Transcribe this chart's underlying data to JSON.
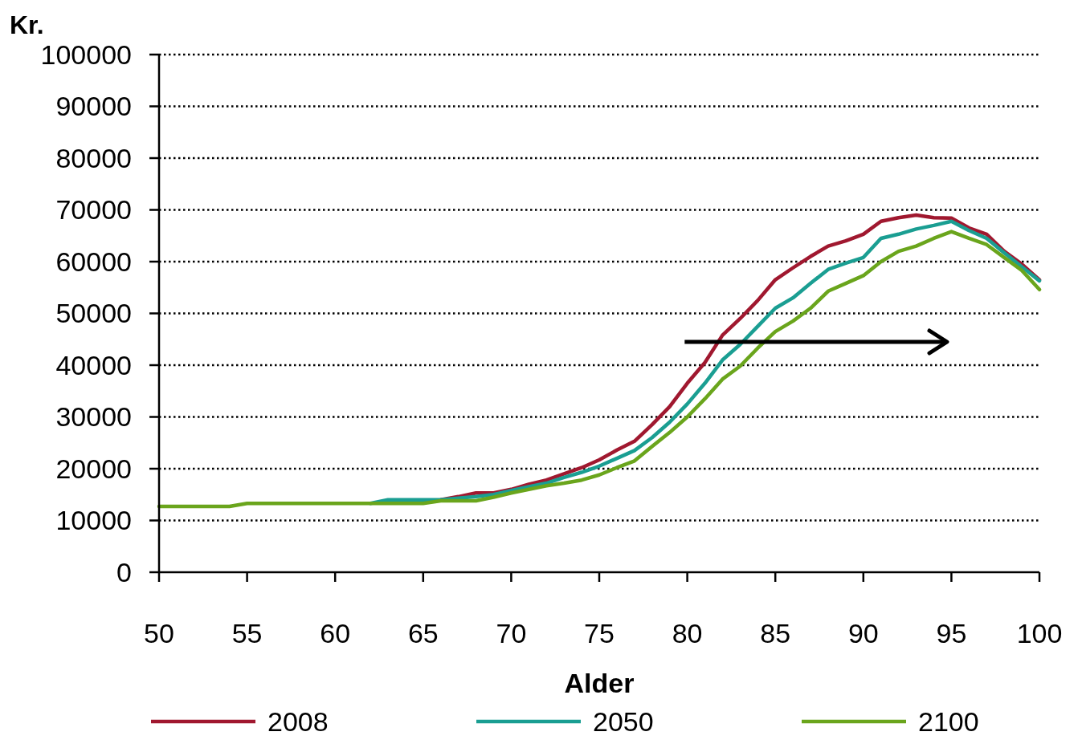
{
  "chart_data": {
    "type": "line",
    "ylabel": "Kr.",
    "xlabel": "Alder",
    "x": [
      50,
      51,
      52,
      53,
      54,
      55,
      56,
      57,
      58,
      59,
      60,
      61,
      62,
      63,
      64,
      65,
      66,
      67,
      68,
      69,
      70,
      71,
      72,
      73,
      74,
      75,
      76,
      77,
      78,
      79,
      80,
      81,
      82,
      83,
      84,
      85,
      86,
      87,
      88,
      89,
      90,
      91,
      92,
      93,
      94,
      95,
      96,
      97,
      98,
      99,
      100
    ],
    "series": [
      {
        "name": "2008",
        "color": "#a0182f",
        "values": [
          null,
          null,
          null,
          null,
          null,
          null,
          null,
          null,
          null,
          null,
          null,
          null,
          null,
          null,
          null,
          null,
          14000,
          14600,
          15300,
          15300,
          16000,
          17000,
          17800,
          19000,
          20200,
          21700,
          23600,
          25300,
          28500,
          32000,
          36500,
          40500,
          45800,
          49000,
          52500,
          56500,
          58800,
          61000,
          63000,
          64000,
          65300,
          67800,
          68500,
          69000,
          68500,
          68400,
          66500,
          65300,
          62000,
          59500,
          56500
        ]
      },
      {
        "name": "2050",
        "color": "#1a9e92",
        "values": [
          null,
          null,
          null,
          null,
          null,
          null,
          null,
          null,
          null,
          null,
          null,
          null,
          13300,
          14000,
          14000,
          14000,
          14000,
          14300,
          14600,
          15000,
          15800,
          16500,
          17200,
          18300,
          19300,
          20500,
          22000,
          23500,
          26000,
          29000,
          32500,
          36500,
          41000,
          44000,
          47500,
          51000,
          53000,
          55800,
          58500,
          59700,
          60800,
          64500,
          65300,
          66300,
          67000,
          67800,
          66000,
          64500,
          61700,
          59000,
          56300
        ]
      },
      {
        "name": "2100",
        "color": "#6aa51c",
        "values": [
          12700,
          12700,
          12700,
          12700,
          12700,
          13300,
          13300,
          13300,
          13300,
          13300,
          13300,
          13300,
          13300,
          13300,
          13300,
          13300,
          13800,
          13800,
          13800,
          14500,
          15300,
          16000,
          16700,
          17200,
          17800,
          18800,
          20200,
          21500,
          24300,
          27000,
          30000,
          33500,
          37300,
          39800,
          43300,
          46500,
          48500,
          51000,
          54300,
          55800,
          57300,
          60000,
          62000,
          63000,
          64500,
          65800,
          64500,
          63300,
          60800,
          58300,
          54600
        ]
      }
    ],
    "xlim": [
      50,
      100
    ],
    "xticks": [
      50,
      55,
      60,
      65,
      70,
      75,
      80,
      85,
      90,
      95,
      100
    ],
    "ylim": [
      0,
      100000
    ],
    "yticks": [
      0,
      10000,
      20000,
      30000,
      40000,
      50000,
      60000,
      70000,
      80000,
      90000,
      100000
    ],
    "grid": "y",
    "legend": "bottom",
    "line_style": "solid",
    "marker": "none"
  }
}
